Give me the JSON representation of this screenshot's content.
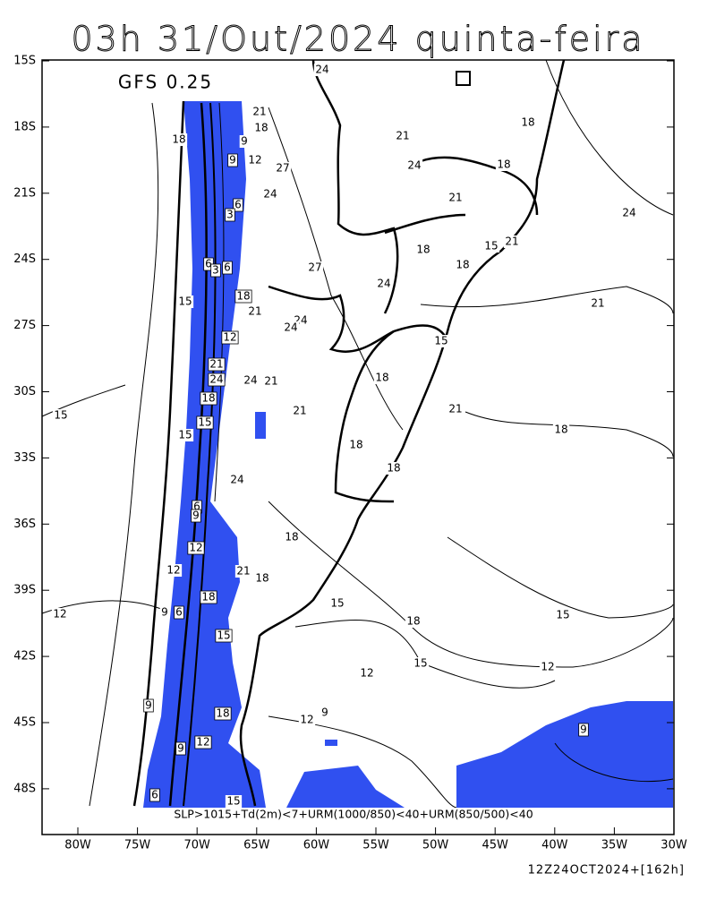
{
  "header": {
    "title": "03h 31/Out/2024 quinta-feira"
  },
  "map": {
    "model": "GFS 0.25",
    "lat_labels": [
      "15S",
      "18S",
      "21S",
      "24S",
      "27S",
      "30S",
      "33S",
      "36S",
      "39S",
      "42S",
      "45S",
      "48S"
    ],
    "lon_labels": [
      "80W",
      "75W",
      "70W",
      "65W",
      "60W",
      "55W",
      "50W",
      "45W",
      "40W",
      "35W",
      "30W"
    ],
    "contour_labels": [
      "24",
      "21",
      "18",
      "18",
      "9",
      "9",
      "12",
      "27",
      "6",
      "24",
      "3",
      "21",
      "24",
      "18",
      "18",
      "21",
      "24",
      "21",
      "15",
      "18",
      "18",
      "27",
      "6",
      "3",
      "6",
      "24",
      "15",
      "18",
      "21",
      "24",
      "24",
      "21",
      "12",
      "15",
      "21",
      "24",
      "24",
      "21",
      "18",
      "18",
      "21",
      "21",
      "15",
      "15",
      "18",
      "15",
      "18",
      "18",
      "24",
      "6",
      "9",
      "18",
      "12",
      "21",
      "12",
      "18",
      "18",
      "9",
      "6",
      "15",
      "18",
      "15",
      "12",
      "15",
      "15",
      "12",
      "12",
      "9",
      "18",
      "12",
      "9",
      "9",
      "12",
      "9",
      "6",
      "15"
    ],
    "condition": "SLP>1015+Td(2m)<7+URM(1000/850)<40+URM(850/500)<40"
  },
  "footer": {
    "run": "12Z24OCT2024+[162h]"
  }
}
